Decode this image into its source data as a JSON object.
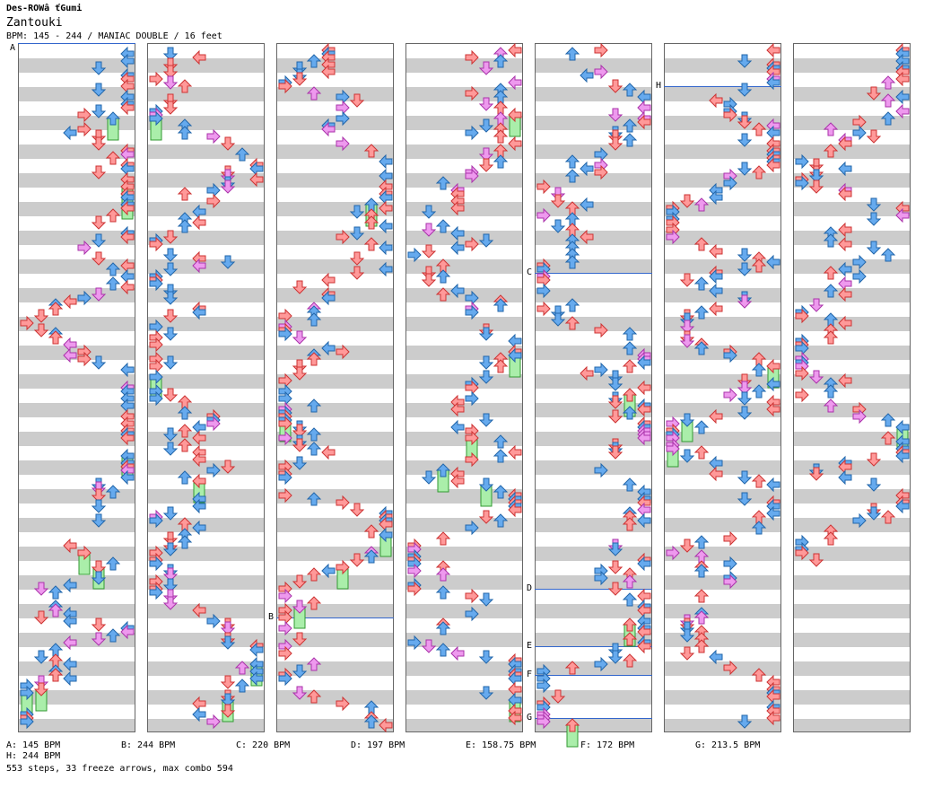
{
  "header": {
    "artist": "Des-ROWâ ťGumi",
    "title": "Zantouki",
    "info": "BPM: 145 - 244 / MANIAC DOUBLE / 16 feet"
  },
  "bpm_markers": [
    {
      "label": "A",
      "col": 0,
      "beat": 0
    },
    {
      "label": "B",
      "col": 2,
      "beat": 80
    },
    {
      "label": "C",
      "col": 4,
      "beat": 32
    },
    {
      "label": "D",
      "col": 4,
      "beat": 76
    },
    {
      "label": "E",
      "col": 4,
      "beat": 84
    },
    {
      "label": "F",
      "col": 4,
      "beat": 88
    },
    {
      "label": "G",
      "col": 4,
      "beat": 94
    },
    {
      "label": "H",
      "col": 5,
      "beat": 6
    }
  ],
  "footer": {
    "bpms": [
      "A: 145 BPM",
      "B: 244 BPM",
      "C: 220 BPM",
      "D: 197 BPM",
      "E: 158.75 BPM",
      "F: 172 BPM",
      "G: 213.5 BPM"
    ],
    "bpm_h": "H: 244 BPM",
    "stats": "553 steps, 33 freeze arrows, max combo 594"
  },
  "colors": {
    "quarter": "#ff9999",
    "eighth": "#66aaee",
    "sixteenth": "#ee99ee",
    "mine": "#ffee33",
    "freeze": "#aaeeaa"
  }
}
